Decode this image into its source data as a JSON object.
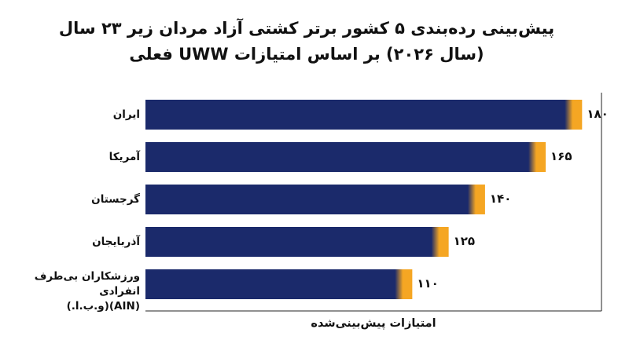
{
  "chart_data": {
    "type": "barh",
    "title": "پیش‌بینی رده‌بندی ۵ کشور برتر کشتی آزاد مردان زیر ۲۳ سال\n(سال ۲۰۲۶) بر اساس امتیازات UWW فعلی",
    "categories": [
      "ایران",
      "آمریکا",
      "گرجستان",
      "آذربایجان",
      "ورزشکاران بی‌طرف انفرادی\n(AIN)(و.ب.ا.)"
    ],
    "values": [
      180,
      165,
      140,
      125,
      110
    ],
    "value_labels": [
      "۱۸۰",
      "۱۶۵",
      "۱۴۰",
      "۱۲۵",
      "۱۱۰"
    ],
    "x_label": "امتیازات پیش‌بینی‌شده",
    "xlim": [
      0,
      188
    ],
    "color": "#1b2a6b",
    "tip_color": "#f5a623"
  }
}
